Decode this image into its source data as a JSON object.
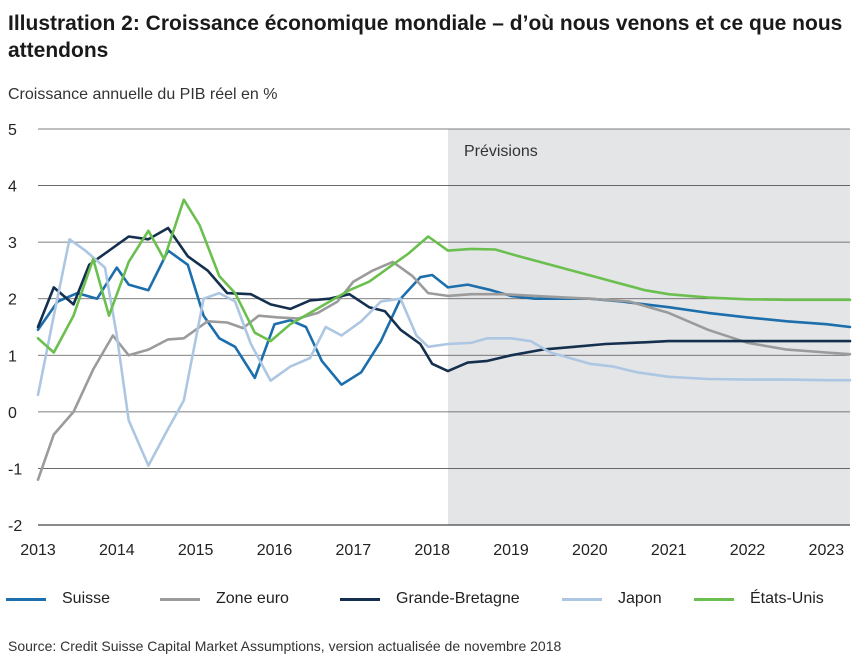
{
  "title": "Illustration 2: Croissance économique mondiale – d’où nous venons et ce que nous attendons",
  "source": "Source: Credit Suisse Capital Market Assumptions, version actualisée de novembre 2018",
  "chart_data": {
    "type": "line",
    "ylabel": "Croissance annuelle du PIB réel en %",
    "ylim": [
      -2,
      5
    ],
    "yticks": [
      5,
      4,
      3,
      2,
      1,
      0,
      -1,
      -2
    ],
    "xlim": [
      2013,
      2023.3
    ],
    "xticks": [
      "2013",
      "2014",
      "2015",
      "2016",
      "2017",
      "2018",
      "2019",
      "2020",
      "2021",
      "2022",
      "2023"
    ],
    "grid": "horizontal",
    "forecast_region": {
      "label": "Prévisions",
      "start": 2018.2,
      "end": 2023.3,
      "color": "#e4e5e7"
    },
    "legend_position": "bottom",
    "series": [
      {
        "name": "Suisse",
        "color": "#1c6fac",
        "points": [
          [
            2013.0,
            1.45
          ],
          [
            2013.25,
            1.95
          ],
          [
            2013.5,
            2.1
          ],
          [
            2013.75,
            2.0
          ],
          [
            2014.0,
            2.55
          ],
          [
            2014.15,
            2.25
          ],
          [
            2014.4,
            2.15
          ],
          [
            2014.65,
            2.85
          ],
          [
            2014.9,
            2.6
          ],
          [
            2015.1,
            1.7
          ],
          [
            2015.3,
            1.3
          ],
          [
            2015.5,
            1.15
          ],
          [
            2015.75,
            0.6
          ],
          [
            2016.0,
            1.55
          ],
          [
            2016.2,
            1.62
          ],
          [
            2016.4,
            1.5
          ],
          [
            2016.6,
            0.9
          ],
          [
            2016.85,
            0.48
          ],
          [
            2017.1,
            0.7
          ],
          [
            2017.35,
            1.25
          ],
          [
            2017.6,
            2.0
          ],
          [
            2017.85,
            2.38
          ],
          [
            2018.0,
            2.42
          ],
          [
            2018.2,
            2.2
          ],
          [
            2018.45,
            2.25
          ],
          [
            2018.75,
            2.15
          ],
          [
            2019.0,
            2.05
          ],
          [
            2019.3,
            2.0
          ],
          [
            2019.6,
            2.0
          ],
          [
            2020.0,
            2.0
          ],
          [
            2020.4,
            1.95
          ],
          [
            2021.0,
            1.85
          ],
          [
            2021.5,
            1.75
          ],
          [
            2022.0,
            1.67
          ],
          [
            2022.5,
            1.6
          ],
          [
            2023.0,
            1.55
          ],
          [
            2023.3,
            1.5
          ]
        ]
      },
      {
        "name": "Zone euro",
        "color": "#9b9b9b",
        "points": [
          [
            2013.0,
            -1.2
          ],
          [
            2013.2,
            -0.4
          ],
          [
            2013.45,
            0.0
          ],
          [
            2013.7,
            0.75
          ],
          [
            2013.95,
            1.35
          ],
          [
            2014.15,
            1.0
          ],
          [
            2014.4,
            1.1
          ],
          [
            2014.65,
            1.28
          ],
          [
            2014.85,
            1.3
          ],
          [
            2015.0,
            1.45
          ],
          [
            2015.15,
            1.6
          ],
          [
            2015.4,
            1.58
          ],
          [
            2015.6,
            1.48
          ],
          [
            2015.8,
            1.7
          ],
          [
            2016.05,
            1.67
          ],
          [
            2016.3,
            1.65
          ],
          [
            2016.55,
            1.75
          ],
          [
            2016.8,
            1.95
          ],
          [
            2017.0,
            2.3
          ],
          [
            2017.25,
            2.5
          ],
          [
            2017.5,
            2.65
          ],
          [
            2017.75,
            2.4
          ],
          [
            2017.95,
            2.1
          ],
          [
            2018.2,
            2.05
          ],
          [
            2018.5,
            2.08
          ],
          [
            2018.9,
            2.08
          ],
          [
            2019.3,
            2.05
          ],
          [
            2019.7,
            2.02
          ],
          [
            2020.0,
            2.0
          ],
          [
            2020.5,
            1.95
          ],
          [
            2021.0,
            1.75
          ],
          [
            2021.5,
            1.45
          ],
          [
            2022.0,
            1.22
          ],
          [
            2022.5,
            1.1
          ],
          [
            2023.0,
            1.05
          ],
          [
            2023.3,
            1.02
          ]
        ]
      },
      {
        "name": "Grande-Bretagne",
        "color": "#15304f",
        "points": [
          [
            2013.0,
            1.5
          ],
          [
            2013.2,
            2.2
          ],
          [
            2013.45,
            1.9
          ],
          [
            2013.65,
            2.6
          ],
          [
            2013.85,
            2.8
          ],
          [
            2014.15,
            3.1
          ],
          [
            2014.4,
            3.05
          ],
          [
            2014.65,
            3.25
          ],
          [
            2014.9,
            2.75
          ],
          [
            2015.15,
            2.5
          ],
          [
            2015.4,
            2.1
          ],
          [
            2015.7,
            2.08
          ],
          [
            2015.95,
            1.9
          ],
          [
            2016.2,
            1.82
          ],
          [
            2016.45,
            1.97
          ],
          [
            2016.7,
            2.0
          ],
          [
            2016.95,
            2.08
          ],
          [
            2017.2,
            1.85
          ],
          [
            2017.4,
            1.78
          ],
          [
            2017.6,
            1.45
          ],
          [
            2017.85,
            1.2
          ],
          [
            2018.0,
            0.85
          ],
          [
            2018.2,
            0.72
          ],
          [
            2018.45,
            0.87
          ],
          [
            2018.7,
            0.9
          ],
          [
            2019.0,
            1.0
          ],
          [
            2019.4,
            1.1
          ],
          [
            2019.8,
            1.15
          ],
          [
            2020.2,
            1.2
          ],
          [
            2020.7,
            1.23
          ],
          [
            2021.0,
            1.25
          ],
          [
            2022.0,
            1.25
          ],
          [
            2023.0,
            1.25
          ],
          [
            2023.3,
            1.25
          ]
        ]
      },
      {
        "name": "Japon",
        "color": "#adc7e3",
        "points": [
          [
            2013.0,
            0.3
          ],
          [
            2013.2,
            1.7
          ],
          [
            2013.4,
            3.05
          ],
          [
            2013.6,
            2.85
          ],
          [
            2013.85,
            2.55
          ],
          [
            2014.0,
            1.35
          ],
          [
            2014.15,
            -0.15
          ],
          [
            2014.4,
            -0.95
          ],
          [
            2014.65,
            -0.3
          ],
          [
            2014.85,
            0.2
          ],
          [
            2015.1,
            2.0
          ],
          [
            2015.3,
            2.1
          ],
          [
            2015.5,
            1.95
          ],
          [
            2015.7,
            1.2
          ],
          [
            2015.95,
            0.55
          ],
          [
            2016.2,
            0.8
          ],
          [
            2016.45,
            0.95
          ],
          [
            2016.65,
            1.5
          ],
          [
            2016.85,
            1.35
          ],
          [
            2017.1,
            1.6
          ],
          [
            2017.35,
            1.95
          ],
          [
            2017.6,
            2.0
          ],
          [
            2017.8,
            1.35
          ],
          [
            2017.95,
            1.15
          ],
          [
            2018.2,
            1.2
          ],
          [
            2018.5,
            1.22
          ],
          [
            2018.7,
            1.3
          ],
          [
            2019.0,
            1.3
          ],
          [
            2019.25,
            1.25
          ],
          [
            2019.5,
            1.05
          ],
          [
            2019.75,
            0.95
          ],
          [
            2020.0,
            0.85
          ],
          [
            2020.3,
            0.8
          ],
          [
            2020.6,
            0.7
          ],
          [
            2021.0,
            0.62
          ],
          [
            2021.5,
            0.58
          ],
          [
            2022.0,
            0.57
          ],
          [
            2022.5,
            0.57
          ],
          [
            2023.0,
            0.56
          ],
          [
            2023.3,
            0.56
          ]
        ]
      },
      {
        "name": "États-Unis",
        "color": "#6bbf4e",
        "points": [
          [
            2013.0,
            1.3
          ],
          [
            2013.2,
            1.05
          ],
          [
            2013.45,
            1.7
          ],
          [
            2013.7,
            2.7
          ],
          [
            2013.9,
            1.7
          ],
          [
            2014.15,
            2.65
          ],
          [
            2014.4,
            3.2
          ],
          [
            2014.6,
            2.7
          ],
          [
            2014.85,
            3.75
          ],
          [
            2015.05,
            3.3
          ],
          [
            2015.3,
            2.4
          ],
          [
            2015.5,
            2.1
          ],
          [
            2015.75,
            1.4
          ],
          [
            2015.95,
            1.25
          ],
          [
            2016.2,
            1.55
          ],
          [
            2016.45,
            1.75
          ],
          [
            2016.7,
            1.95
          ],
          [
            2016.95,
            2.15
          ],
          [
            2017.2,
            2.3
          ],
          [
            2017.45,
            2.55
          ],
          [
            2017.7,
            2.8
          ],
          [
            2017.95,
            3.1
          ],
          [
            2018.2,
            2.85
          ],
          [
            2018.5,
            2.88
          ],
          [
            2018.8,
            2.87
          ],
          [
            2019.1,
            2.75
          ],
          [
            2019.5,
            2.6
          ],
          [
            2019.9,
            2.45
          ],
          [
            2020.3,
            2.3
          ],
          [
            2020.7,
            2.15
          ],
          [
            2021.0,
            2.08
          ],
          [
            2021.5,
            2.02
          ],
          [
            2022.0,
            1.99
          ],
          [
            2022.5,
            1.98
          ],
          [
            2023.0,
            1.98
          ],
          [
            2023.3,
            1.98
          ]
        ]
      }
    ]
  }
}
